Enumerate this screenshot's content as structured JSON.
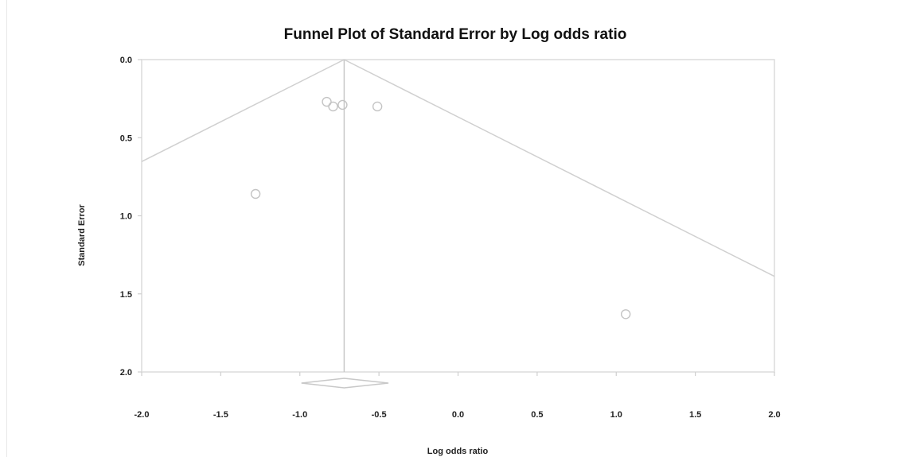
{
  "chart_data": {
    "type": "scatter",
    "title": "Funnel Plot of Standard Error by Log odds ratio",
    "xlabel": "Log odds ratio",
    "ylabel": "Standard Error",
    "xlim": [
      -2.0,
      2.0
    ],
    "ylim": [
      0.0,
      2.0
    ],
    "y_inverted": true,
    "grid": false,
    "x_tick_labels": [
      "-2.0",
      "-1.5",
      "-1.0",
      "-0.5",
      "0.0",
      "0.5",
      "1.0",
      "1.5",
      "2.0"
    ],
    "y_tick_labels": [
      "0.0",
      "0.5",
      "1.0",
      "1.5",
      "2.0"
    ],
    "summary_effect": -0.72,
    "funnel_z": 1.96,
    "summary_diamond": {
      "center": -0.72,
      "lower": -0.99,
      "upper": -0.44
    },
    "points": [
      {
        "x": -0.83,
        "y": 0.27
      },
      {
        "x": -0.79,
        "y": 0.3
      },
      {
        "x": -0.73,
        "y": 0.29
      },
      {
        "x": -0.51,
        "y": 0.3
      },
      {
        "x": -1.28,
        "y": 0.86
      },
      {
        "x": 1.06,
        "y": 1.63
      }
    ],
    "colors": {
      "marks": "#c8c8c8",
      "frame": "#dcdcdc",
      "text": "#222222"
    }
  }
}
